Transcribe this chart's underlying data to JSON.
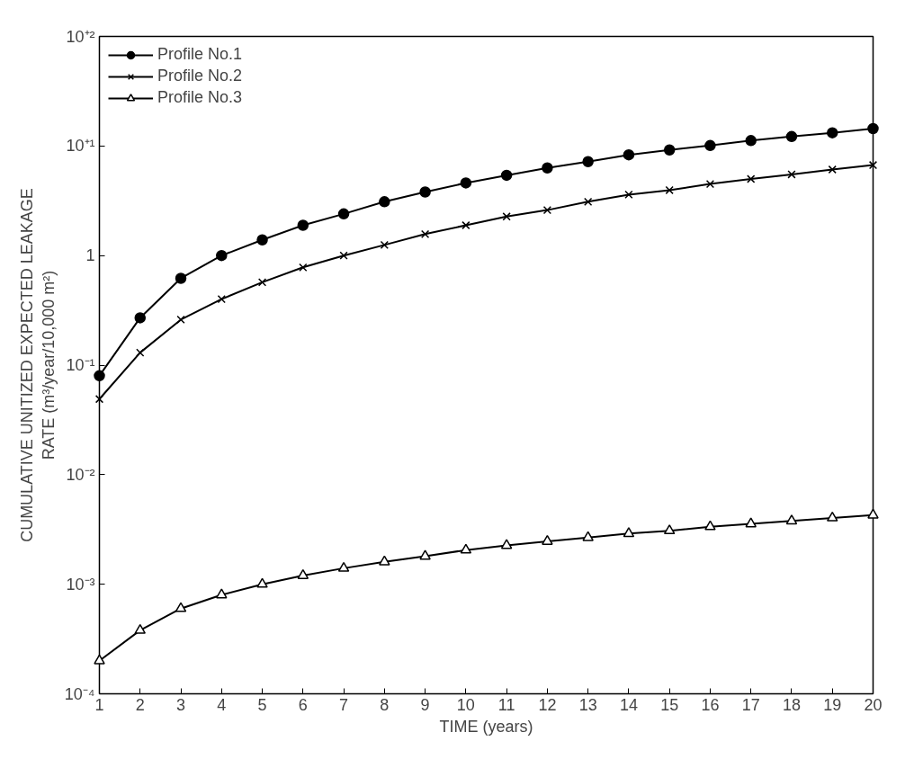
{
  "chart_data": {
    "type": "line",
    "xlabel": "TIME (years)",
    "ylabel": "CUMULATIVE UNITIZED EXPECTED LEAKAGE\nRATE (m³/year/10,000 m²)",
    "x": [
      1,
      2,
      3,
      4,
      5,
      6,
      7,
      8,
      9,
      10,
      11,
      12,
      13,
      14,
      15,
      16,
      17,
      18,
      19,
      20
    ],
    "xlim": [
      1,
      20
    ],
    "xticks": [
      1,
      2,
      3,
      4,
      5,
      6,
      7,
      8,
      9,
      10,
      11,
      12,
      13,
      14,
      15,
      16,
      17,
      18,
      19,
      20
    ],
    "log": "y",
    "ylim": [
      0.0001,
      100
    ],
    "yticks": [
      {
        "value": 0.0001,
        "label": "10⁻⁴"
      },
      {
        "value": 0.001,
        "label": "10⁻³"
      },
      {
        "value": 0.01,
        "label": "10⁻²"
      },
      {
        "value": 0.1,
        "label": "10⁻¹"
      },
      1,
      {
        "value": 10,
        "label": "10⁺¹"
      },
      {
        "value": 100,
        "label": "10⁺²"
      }
    ],
    "grid": false,
    "legend": "top left",
    "line_style": "solid",
    "series": [
      {
        "name": "Profile No.1",
        "color": "#000000",
        "marker": "circle",
        "values": [
          0.08,
          0.27,
          0.62,
          1.0,
          1.39,
          1.89,
          2.4,
          3.1,
          3.8,
          4.6,
          5.4,
          6.3,
          7.2,
          8.3,
          9.2,
          10.1,
          11.2,
          12.2,
          13.2,
          14.4
        ]
      },
      {
        "name": "Profile No.2",
        "color": "#000000",
        "marker": "cross",
        "values": [
          0.049,
          0.13,
          0.26,
          0.4,
          0.57,
          0.78,
          1.0,
          1.25,
          1.57,
          1.89,
          2.27,
          2.6,
          3.1,
          3.6,
          3.95,
          4.5,
          5.0,
          5.5,
          6.1,
          6.7
        ]
      },
      {
        "name": "Profile No.3",
        "color": "#000000",
        "marker": "triangle",
        "values": [
          0.0002,
          0.00038,
          0.0006,
          0.0008,
          0.001,
          0.0012,
          0.0014,
          0.0016,
          0.0018,
          0.00205,
          0.00226,
          0.00246,
          0.00267,
          0.0029,
          0.00308,
          0.00335,
          0.00356,
          0.00378,
          0.00403,
          0.00428
        ]
      }
    ]
  }
}
